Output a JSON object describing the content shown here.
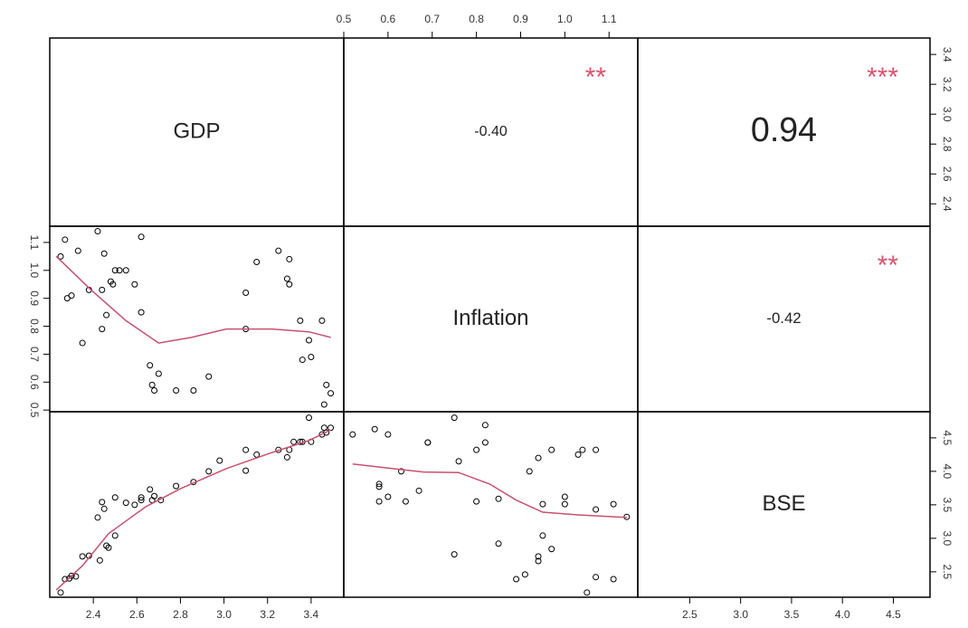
{
  "chart_data": {
    "type": "pairs",
    "line_color": "#c8506e",
    "star_color": "#d9546e",
    "variables": [
      {
        "name": "GDP",
        "xlim": [
          2.2,
          3.55
        ],
        "xticks": [
          2.4,
          2.6,
          2.8,
          {
            "value": 3.0,
            "label": "3.0"
          },
          3.2,
          3.4
        ],
        "ylim": [
          2.25,
          3.51
        ],
        "yticks": [
          2.4,
          2.6,
          2.8,
          {
            "value": 3.0,
            "label": "3.0"
          },
          3.2,
          3.4
        ]
      },
      {
        "name": "Inflation",
        "xlim": [
          0.5,
          1.165
        ],
        "xticks": [
          0.5,
          0.6,
          0.7,
          0.8,
          0.9,
          {
            "value": 1.0,
            "label": "1.0"
          },
          1.1
        ],
        "ylim": [
          0.494,
          1.158
        ],
        "yticks": [
          0.5,
          0.6,
          0.7,
          0.8,
          0.9,
          {
            "value": 1.0,
            "label": "1.0"
          },
          1.1
        ]
      },
      {
        "name": "BSE",
        "xlim": [
          1.99,
          4.86
        ],
        "xticks": [
          2.5,
          {
            "value": 3.0,
            "label": "3.0"
          },
          3.5,
          {
            "value": 4.0,
            "label": "4.0"
          },
          4.5
        ],
        "ylim": [
          2.12,
          4.89
        ],
        "yticks": [
          2.5,
          {
            "value": 3.0,
            "label": "3.0"
          },
          3.5,
          {
            "value": 4.0,
            "label": "4.0"
          },
          4.5
        ]
      }
    ],
    "correlations": {
      "values": [
        -0.4,
        0.94,
        -0.42
      ],
      "value_labels": [
        "-0.40",
        "0.94",
        "-0.42"
      ],
      "stars": [
        "**",
        "***",
        "**"
      ]
    },
    "scatter": [
      {
        "x": [
          2.25,
          2.27,
          2.28,
          2.3,
          2.33,
          2.35,
          2.38,
          2.42,
          2.44,
          2.44,
          2.45,
          2.46,
          2.48,
          2.49,
          2.5,
          2.52,
          2.55,
          2.59,
          2.62,
          2.62,
          2.66,
          2.67,
          2.68,
          2.7,
          2.78,
          2.86,
          2.93,
          3.1,
          3.1,
          3.15,
          3.25,
          3.29,
          3.3,
          3.3,
          3.35,
          3.36,
          3.39,
          3.4,
          3.45,
          3.46,
          3.47,
          3.49
        ],
        "y": [
          1.05,
          1.11,
          0.9,
          0.91,
          1.07,
          0.74,
          0.93,
          1.14,
          0.79,
          0.93,
          1.06,
          0.84,
          0.96,
          0.95,
          1.0,
          1.0,
          1.0,
          0.95,
          0.85,
          1.12,
          0.66,
          0.59,
          0.57,
          0.63,
          0.57,
          0.57,
          0.62,
          0.92,
          0.79,
          1.03,
          1.07,
          0.97,
          0.95,
          1.04,
          0.82,
          0.68,
          0.75,
          0.69,
          0.82,
          0.52,
          0.59,
          0.56
        ],
        "smooth_x": [
          2.23,
          2.39,
          2.55,
          2.7,
          2.85,
          3.01,
          3.22,
          3.39,
          3.49
        ],
        "smooth_y": [
          1.05,
          0.93,
          0.82,
          0.74,
          0.76,
          0.79,
          0.79,
          0.78,
          0.76
        ]
      },
      {
        "x": [
          2.25,
          2.27,
          2.29,
          2.3,
          2.32,
          2.35,
          2.38,
          2.42,
          2.43,
          2.44,
          2.45,
          2.46,
          2.47,
          2.5,
          2.5,
          2.55,
          2.59,
          2.62,
          2.62,
          2.66,
          2.67,
          2.68,
          2.71,
          2.78,
          2.86,
          2.93,
          2.98,
          3.1,
          3.1,
          3.15,
          3.25,
          3.29,
          3.3,
          3.32,
          3.35,
          3.36,
          3.39,
          3.4,
          3.45,
          3.46,
          3.47,
          3.49
        ],
        "y": [
          2.19,
          2.39,
          2.4,
          2.44,
          2.43,
          2.73,
          2.74,
          3.31,
          2.67,
          3.54,
          3.44,
          2.89,
          2.86,
          3.04,
          3.61,
          3.53,
          3.5,
          3.61,
          3.57,
          3.73,
          3.57,
          3.63,
          3.57,
          3.78,
          3.84,
          4.0,
          4.16,
          4.01,
          4.32,
          4.25,
          4.32,
          4.21,
          4.32,
          4.44,
          4.44,
          4.44,
          4.8,
          4.44,
          4.55,
          4.65,
          4.58,
          4.65
        ],
        "smooth_x": [
          2.23,
          2.35,
          2.47,
          2.64,
          2.8,
          3.01,
          3.22,
          3.39,
          3.49
        ],
        "smooth_y": [
          2.23,
          2.59,
          3.07,
          3.47,
          3.74,
          4.04,
          4.28,
          4.46,
          4.62
        ]
      },
      {
        "x": [
          0.52,
          0.57,
          0.58,
          0.58,
          0.58,
          0.6,
          0.6,
          0.63,
          0.64,
          0.67,
          0.69,
          0.69,
          0.75,
          0.76,
          0.75,
          0.8,
          0.8,
          0.82,
          0.82,
          0.85,
          0.85,
          0.89,
          0.91,
          0.92,
          0.94,
          0.94,
          0.94,
          0.95,
          0.95,
          0.97,
          0.97,
          1.0,
          1.0,
          1.03,
          1.04,
          1.05,
          1.07,
          1.07,
          1.07,
          1.11,
          1.11,
          1.14
        ],
        "y": [
          4.55,
          4.63,
          3.81,
          3.77,
          3.55,
          4.55,
          3.62,
          4.0,
          3.55,
          3.71,
          4.43,
          4.43,
          4.8,
          4.15,
          2.76,
          4.32,
          3.55,
          4.69,
          4.43,
          3.59,
          2.92,
          2.39,
          2.46,
          4.0,
          2.73,
          4.2,
          2.66,
          3.04,
          3.51,
          4.32,
          2.84,
          3.62,
          3.51,
          4.25,
          4.32,
          2.19,
          3.43,
          4.32,
          2.42,
          2.39,
          3.51,
          3.32
        ],
        "smooth_x": [
          0.52,
          0.6,
          0.68,
          0.76,
          0.83,
          0.89,
          0.95,
          1.03,
          1.14
        ],
        "smooth_y": [
          4.11,
          4.05,
          3.99,
          3.98,
          3.81,
          3.57,
          3.39,
          3.35,
          3.31
        ]
      }
    ]
  }
}
